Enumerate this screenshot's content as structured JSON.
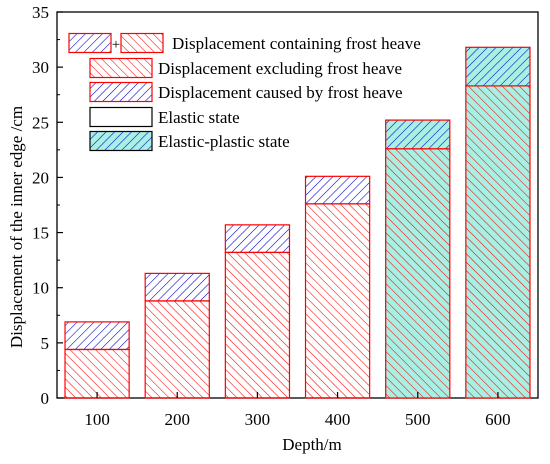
{
  "chart_data": {
    "type": "bar",
    "stacked": true,
    "xlabel": "Depth/m",
    "ylabel": "Displacement of the inner edge /cm",
    "categories": [
      "100",
      "200",
      "300",
      "400",
      "500",
      "600"
    ],
    "ylim": [
      0,
      35
    ],
    "yticks": [
      "0",
      "5",
      "10",
      "15",
      "20",
      "25",
      "30",
      "35"
    ],
    "series": [
      {
        "name": "Displacement excluding frost heave",
        "values": [
          4.4,
          8.8,
          13.2,
          17.6,
          22.6,
          28.3
        ]
      },
      {
        "name": "Displacement caused by frost heave",
        "values": [
          2.5,
          2.5,
          2.5,
          2.5,
          2.6,
          3.5
        ]
      }
    ],
    "state": [
      "Elastic state",
      "Elastic state",
      "Elastic state",
      "Elastic state",
      "Elastic-plastic state",
      "Elastic-plastic state"
    ],
    "legend": {
      "position": "top-left",
      "items": [
        {
          "label": "Displacement containing frost heave",
          "swatch": "combined"
        },
        {
          "label": "Displacement excluding frost heave",
          "swatch": "excluding"
        },
        {
          "label": "Displacement caused by frost heave",
          "swatch": "frost"
        },
        {
          "label": "Elastic state",
          "swatch": "elastic"
        },
        {
          "label": "Elastic-plastic state",
          "swatch": "plastic"
        }
      ],
      "plus_sign": "+"
    },
    "colors": {
      "excluding_hatch": "#ff0000",
      "frost_hatch": "#0000cc",
      "plastic_fill": "#a8f0e4",
      "elastic_fill": "#ffffff",
      "outline": "#ff0000"
    },
    "grid": false
  }
}
